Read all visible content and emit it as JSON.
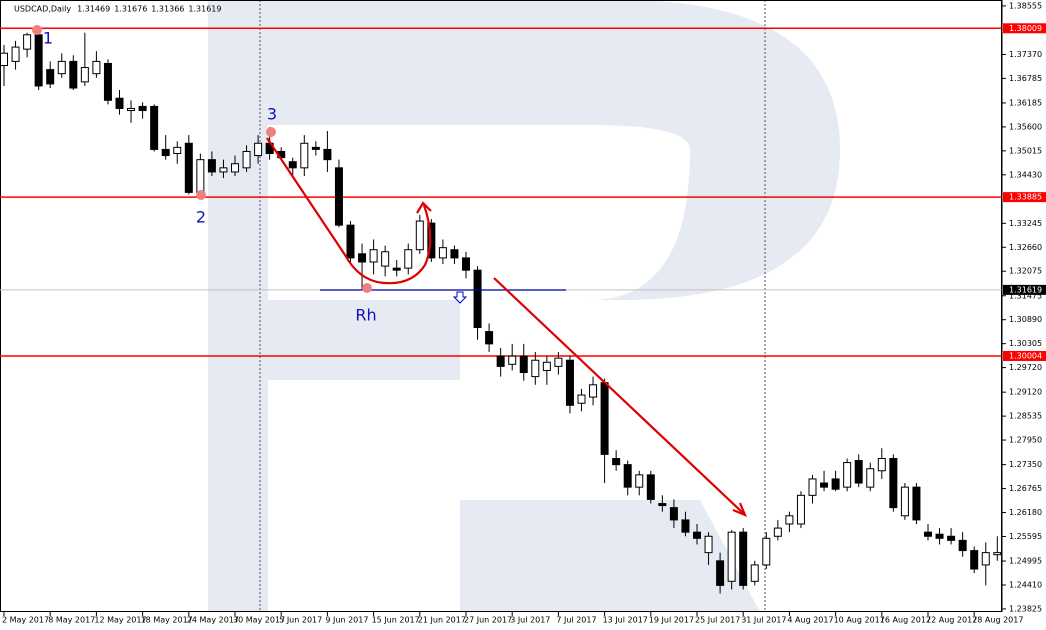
{
  "chart_data": {
    "type": "candlestick",
    "title": "USDCAD,Daily",
    "header_values": [
      1.31469,
      1.31676,
      1.31366,
      1.31619
    ],
    "categories": [
      "2 May 2017",
      null,
      null,
      null,
      "8 May 2017",
      null,
      null,
      null,
      "12 May 2017",
      null,
      null,
      null,
      "18 May 2017",
      null,
      null,
      null,
      "24 May 2017",
      null,
      null,
      null,
      "30 May 2017",
      null,
      null,
      null,
      "5 Jun 2017",
      null,
      null,
      null,
      "9 Jun 2017",
      null,
      null,
      null,
      "15 Jun 2017",
      null,
      null,
      null,
      "21 Jun 2017",
      null,
      null,
      null,
      "27 Jun 2017",
      null,
      null,
      null,
      "3 Jul 2017",
      null,
      null,
      null,
      "7 Jul 2017",
      null,
      null,
      null,
      "13 Jul 2017",
      null,
      null,
      null,
      "19 Jul 2017",
      null,
      null,
      null,
      "25 Jul 2017",
      null,
      null,
      null,
      "31 Jul 2017",
      null,
      null,
      null,
      "4 Aug 2017",
      null,
      null,
      null,
      "10 Aug 2017",
      null,
      null,
      null,
      "16 Aug 2017",
      null,
      null,
      null,
      "22 Aug 2017",
      null,
      null,
      null,
      "28 Aug 2017",
      null,
      null
    ],
    "open": [
      1.371,
      1.372,
      1.375,
      1.3785,
      1.37,
      1.369,
      1.372,
      1.367,
      1.369,
      1.3715,
      1.363,
      1.36,
      1.361,
      1.361,
      1.3505,
      1.3495,
      1.352,
      1.34,
      1.348,
      1.345,
      1.345,
      1.346,
      1.349,
      1.352,
      1.35,
      1.3475,
      1.346,
      1.351,
      1.3505,
      1.346,
      1.332,
      1.325,
      1.323,
      1.322,
      1.3215,
      1.3215,
      1.326,
      1.3325,
      1.324,
      1.326,
      1.324,
      1.321,
      1.306,
      1.3,
      1.298,
      1.3,
      1.295,
      1.2965,
      1.2975,
      1.299,
      1.2885,
      1.29,
      1.2935,
      1.275,
      1.2735,
      1.268,
      1.271,
      1.264,
      1.263,
      1.26,
      1.257,
      1.252,
      1.25,
      1.245,
      1.257,
      1.245,
      1.249,
      1.256,
      1.259,
      1.259,
      1.266,
      1.269,
      1.27,
      1.268,
      1.2745,
      1.268,
      1.272,
      1.275,
      1.261,
      1.268,
      1.257,
      1.2565,
      1.256,
      1.255,
      1.2525,
      1.249,
      1.2515
    ],
    "high": [
      1.376,
      1.377,
      1.379,
      1.3801,
      1.372,
      1.374,
      1.3735,
      1.379,
      1.3745,
      1.3725,
      1.365,
      1.3625,
      1.362,
      1.3615,
      1.354,
      1.3525,
      1.354,
      1.3495,
      1.35,
      1.348,
      1.349,
      1.3515,
      1.354,
      1.356,
      1.351,
      1.3485,
      1.354,
      1.3525,
      1.355,
      1.348,
      1.333,
      1.3275,
      1.3285,
      1.327,
      1.3235,
      1.3275,
      1.3345,
      1.3335,
      1.3285,
      1.327,
      1.3255,
      1.322,
      1.308,
      1.302,
      1.303,
      1.303,
      1.301,
      1.3,
      1.301,
      1.3,
      1.292,
      1.295,
      1.2945,
      1.277,
      1.2745,
      1.272,
      1.272,
      1.266,
      1.265,
      1.262,
      1.259,
      1.257,
      1.252,
      1.2575,
      1.258,
      1.25,
      1.257,
      1.26,
      1.262,
      1.267,
      1.271,
      1.272,
      1.272,
      1.275,
      1.276,
      1.274,
      1.2775,
      1.276,
      1.269,
      1.269,
      1.259,
      1.258,
      1.258,
      1.257,
      1.2535,
      1.2545,
      1.256
    ],
    "low": [
      1.366,
      1.37,
      1.373,
      1.365,
      1.3655,
      1.368,
      1.365,
      1.366,
      1.368,
      1.3615,
      1.359,
      1.357,
      1.358,
      1.35,
      1.348,
      1.347,
      1.3395,
      1.3389,
      1.344,
      1.3435,
      1.344,
      1.345,
      1.347,
      1.348,
      1.348,
      1.344,
      1.344,
      1.349,
      1.345,
      1.3315,
      1.323,
      1.3163,
      1.32,
      1.3195,
      1.3195,
      1.32,
      1.325,
      1.323,
      1.3225,
      1.3225,
      1.319,
      1.304,
      1.301,
      1.295,
      1.2965,
      1.294,
      1.293,
      1.293,
      1.2955,
      1.286,
      1.2865,
      1.288,
      1.269,
      1.272,
      1.266,
      1.266,
      1.264,
      1.262,
      1.258,
      1.256,
      1.254,
      1.249,
      1.242,
      1.243,
      1.243,
      1.244,
      1.248,
      1.255,
      1.257,
      1.258,
      1.264,
      1.267,
      1.267,
      1.267,
      1.268,
      1.267,
      1.27,
      1.262,
      1.26,
      1.259,
      1.255,
      1.254,
      1.254,
      1.251,
      1.247,
      1.244,
      1.25
    ],
    "close": [
      1.374,
      1.3755,
      1.3785,
      1.366,
      1.3665,
      1.372,
      1.3655,
      1.3705,
      1.372,
      1.3625,
      1.3605,
      1.3605,
      1.36,
      1.3505,
      1.349,
      1.351,
      1.34,
      1.348,
      1.345,
      1.346,
      1.347,
      1.35,
      1.352,
      1.3495,
      1.3485,
      1.346,
      1.352,
      1.3505,
      1.348,
      1.332,
      1.324,
      1.323,
      1.326,
      1.3255,
      1.321,
      1.326,
      1.333,
      1.324,
      1.3265,
      1.324,
      1.321,
      1.307,
      1.303,
      1.2975,
      1.3,
      1.296,
      1.299,
      1.2985,
      1.2995,
      1.288,
      1.2905,
      1.293,
      1.276,
      1.2735,
      1.268,
      1.271,
      1.265,
      1.2635,
      1.26,
      1.257,
      1.2555,
      1.256,
      1.244,
      1.257,
      1.244,
      1.249,
      1.2555,
      1.258,
      1.261,
      1.266,
      1.27,
      1.268,
      1.2675,
      1.274,
      1.269,
      1.2725,
      1.275,
      1.263,
      1.268,
      1.26,
      1.256,
      1.2555,
      1.255,
      1.2525,
      1.248,
      1.252,
      1.252
    ],
    "ylim": [
      1.2375,
      1.387
    ],
    "yticks": [
      1.38555,
      {
        "value": 1.3737,
        "label": "1.37370"
      },
      1.36785,
      1.36185,
      {
        "value": 1.356,
        "label": "1.35600"
      },
      1.35015,
      {
        "value": 1.3443,
        "label": "1.34430"
      },
      1.33245,
      {
        "value": 1.3266,
        "label": "1.32660"
      },
      1.32075,
      1.31475,
      {
        "value": 1.3089,
        "label": "1.30890"
      },
      1.30305,
      {
        "value": 1.2972,
        "label": "1.29720"
      },
      {
        "value": 1.2912,
        "label": "1.29120"
      },
      1.28535,
      {
        "value": 1.2795,
        "label": "1.27950"
      },
      {
        "value": 1.2735,
        "label": "1.27350"
      },
      1.26765,
      {
        "value": 1.2618,
        "label": "1.26180"
      },
      1.25595,
      1.24995,
      {
        "value": 1.2441,
        "label": "1.24410"
      },
      1.23825
    ],
    "levels": [
      {
        "value": 1.38009,
        "color": "#ff0000"
      },
      {
        "value": 1.33885,
        "color": "#ff0000"
      },
      {
        "value": 1.30004,
        "color": "#ff0000"
      },
      {
        "value": 1.31619,
        "color": "#c0c0c0"
      }
    ],
    "annotations": [
      "1",
      "2",
      "3",
      "Rh"
    ],
    "up_color": "#ffffff",
    "down_color": "#000000"
  }
}
